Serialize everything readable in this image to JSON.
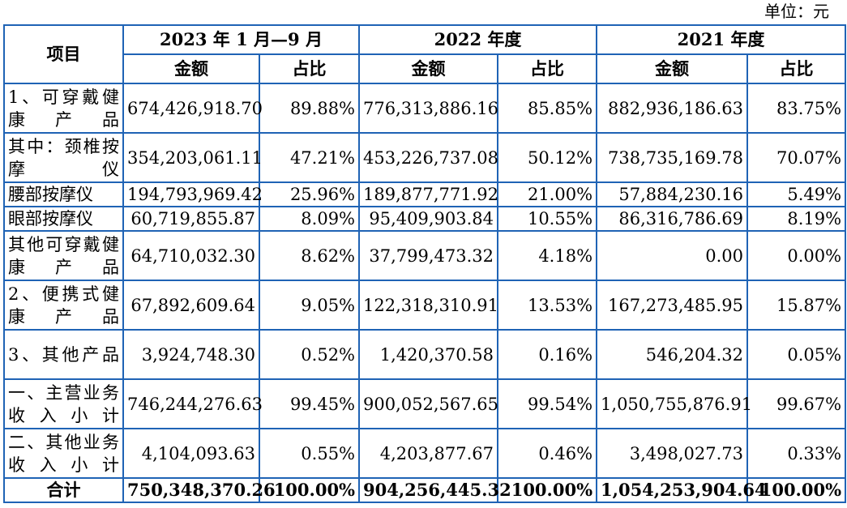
{
  "unit_label": "单位：元",
  "header": {
    "item": "项目",
    "periods": [
      "2023 年 1 月—9 月",
      "2022 年度",
      "2021 年度"
    ],
    "amount": "金额",
    "ratio": "占比"
  },
  "rows": [
    {
      "item": "1、可穿戴健康产品",
      "v": [
        "674,426,918.70",
        "89.88%",
        "776,313,886.16",
        "85.85%",
        "882,936,186.63",
        "83.75%"
      ]
    },
    {
      "item": "其中：颈椎按摩仪",
      "v": [
        "354,203,061.11",
        "47.21%",
        "453,226,737.08",
        "50.12%",
        "738,735,169.78",
        "70.07%"
      ]
    },
    {
      "item": "腰部按摩仪",
      "v": [
        "194,793,969.42",
        "25.96%",
        "189,877,771.92",
        "21.00%",
        "57,884,230.16",
        "5.49%"
      ]
    },
    {
      "item": "眼部按摩仪",
      "v": [
        "60,719,855.87",
        "8.09%",
        "95,409,903.84",
        "10.55%",
        "86,316,786.69",
        "8.19%"
      ]
    },
    {
      "item": "其他可穿戴健康产品",
      "v": [
        "64,710,032.30",
        "8.62%",
        "37,799,473.32",
        "4.18%",
        "0.00",
        "0.00%"
      ]
    },
    {
      "item": "2、便携式健康产品",
      "v": [
        "67,892,609.64",
        "9.05%",
        "122,318,310.91",
        "13.53%",
        "167,273,485.95",
        "15.87%"
      ]
    },
    {
      "item": "3、其他产品",
      "v": [
        "3,924,748.30",
        "0.52%",
        "1,420,370.58",
        "0.16%",
        "546,204.32",
        "0.05%"
      ]
    },
    {
      "item": "一、主营业务收入小计",
      "v": [
        "746,244,276.63",
        "99.45%",
        "900,052,567.65",
        "99.54%",
        "1,050,755,876.91",
        "99.67%"
      ]
    },
    {
      "item": "二、其他业务收入小计",
      "v": [
        "4,104,093.63",
        "0.55%",
        "4,203,877.67",
        "0.46%",
        "3,498,027.73",
        "0.33%"
      ]
    }
  ],
  "total": {
    "item": "合计",
    "v": [
      "750,348,370.26",
      "100.00%",
      "904,256,445.32",
      "100.00%",
      "1,054,253,904.64",
      "100.00%"
    ]
  }
}
